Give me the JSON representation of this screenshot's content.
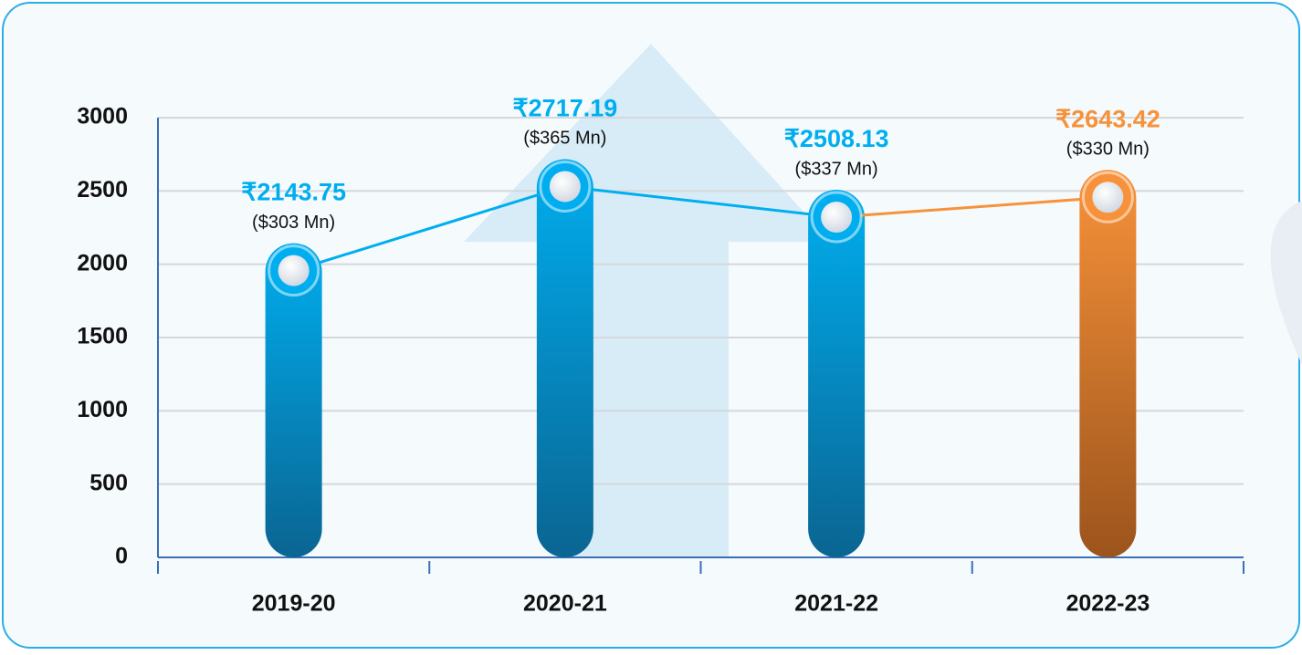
{
  "chart_data": {
    "type": "bar",
    "categories": [
      "2019-20",
      "2020-21",
      "2021-22",
      "2022-23"
    ],
    "values": [
      2143.75,
      2717.19,
      2508.13,
      2643.42
    ],
    "value_labels": [
      "₹2143.75",
      "₹2717.19",
      "₹2508.13",
      "₹2643.42"
    ],
    "usd_labels": [
      "($303 Mn)",
      "($365 Mn)",
      "($337 Mn)",
      "($330 Mn)"
    ],
    "colors": [
      "#00aeef",
      "#00aeef",
      "#00aeef",
      "#f7923a"
    ],
    "ylim": [
      0,
      3000
    ],
    "yticks": [
      0,
      500,
      1000,
      1500,
      2000,
      2500,
      3000
    ],
    "grid": true
  }
}
